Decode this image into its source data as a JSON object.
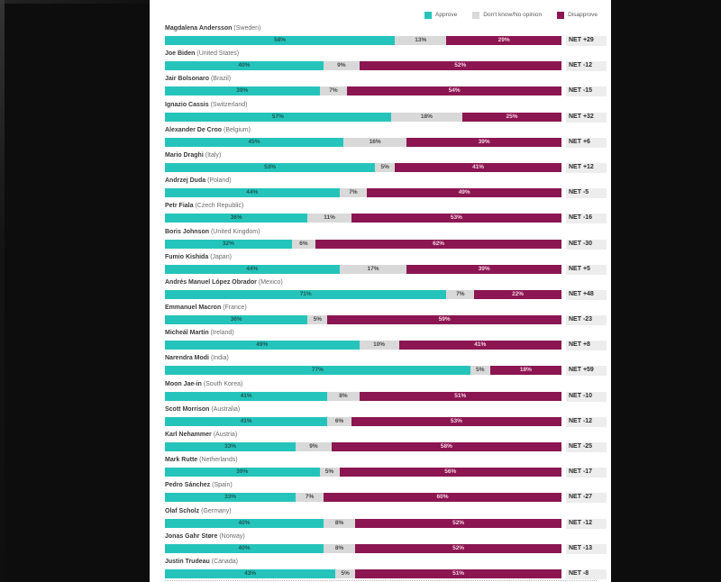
{
  "chart_data": {
    "type": "bar",
    "orientation": "horizontal",
    "stacked": true,
    "title": "",
    "xlim": [
      0,
      100
    ],
    "grid": false,
    "legend_position": "top-right",
    "legend": {
      "approve": "Approve",
      "dk": "Don't know/No opinion",
      "disapprove": "Disapprove"
    },
    "colors": {
      "approve": "#25c4bb",
      "dk": "#d9d9d9",
      "disapprove": "#8b1651"
    },
    "net_prefix": "NET",
    "rows": [
      {
        "name": "Magdalena Andersson",
        "country": "Sweden",
        "approve": 58,
        "dk": 13,
        "disapprove": 29,
        "net": "+29"
      },
      {
        "name": "Joe Biden",
        "country": "United States",
        "approve": 40,
        "dk": 9,
        "disapprove": 52,
        "net": "-12"
      },
      {
        "name": "Jair Bolsonaro",
        "country": "Brazil",
        "approve": 39,
        "dk": 7,
        "disapprove": 54,
        "net": "-15"
      },
      {
        "name": "Ignazio Cassis",
        "country": "Switzerland",
        "approve": 57,
        "dk": 18,
        "disapprove": 25,
        "net": "+32"
      },
      {
        "name": "Alexander De Croo",
        "country": "Belgium",
        "approve": 45,
        "dk": 16,
        "disapprove": 39,
        "net": "+6"
      },
      {
        "name": "Mario Draghi",
        "country": "Italy",
        "approve": 53,
        "dk": 5,
        "disapprove": 41,
        "net": "+12"
      },
      {
        "name": "Andrzej Duda",
        "country": "Poland",
        "approve": 44,
        "dk": 7,
        "disapprove": 49,
        "net": "-5"
      },
      {
        "name": "Petr Fiala",
        "country": "Czech Republic",
        "approve": 36,
        "dk": 11,
        "disapprove": 53,
        "net": "-16"
      },
      {
        "name": "Boris Johnson",
        "country": "United Kingdom",
        "approve": 32,
        "dk": 6,
        "disapprove": 62,
        "net": "-30"
      },
      {
        "name": "Fumio Kishida",
        "country": "Japan",
        "approve": 44,
        "dk": 17,
        "disapprove": 39,
        "net": "+5"
      },
      {
        "name": "Andrés Manuel López Obrador",
        "country": "Mexico",
        "approve": 71,
        "dk": 7,
        "disapprove": 22,
        "net": "+48"
      },
      {
        "name": "Emmanuel Macron",
        "country": "France",
        "approve": 36,
        "dk": 5,
        "disapprove": 59,
        "net": "-23"
      },
      {
        "name": "Micheál Martin",
        "country": "Ireland",
        "approve": 49,
        "dk": 10,
        "disapprove": 41,
        "net": "+8"
      },
      {
        "name": "Narendra Modi",
        "country": "India",
        "approve": 77,
        "dk": 5,
        "disapprove": 18,
        "net": "+59"
      },
      {
        "name": "Moon Jae-in",
        "country": "South Korea",
        "approve": 41,
        "dk": 8,
        "disapprove": 51,
        "net": "-10"
      },
      {
        "name": "Scott Morrison",
        "country": "Australia",
        "approve": 41,
        "dk": 6,
        "disapprove": 53,
        "net": "-12"
      },
      {
        "name": "Karl Nehammer",
        "country": "Austria",
        "approve": 33,
        "dk": 9,
        "disapprove": 58,
        "net": "-25"
      },
      {
        "name": "Mark Rutte",
        "country": "Netherlands",
        "approve": 39,
        "dk": 5,
        "disapprove": 56,
        "net": "-17"
      },
      {
        "name": "Pedro Sánchez",
        "country": "Spain",
        "approve": 33,
        "dk": 7,
        "disapprove": 60,
        "net": "-27"
      },
      {
        "name": "Olaf Scholz",
        "country": "Germany",
        "approve": 40,
        "dk": 8,
        "disapprove": 52,
        "net": "-12"
      },
      {
        "name": "Jonas Gahr Støre",
        "country": "Norway",
        "approve": 40,
        "dk": 8,
        "disapprove": 52,
        "net": "-13"
      },
      {
        "name": "Justin Trudeau",
        "country": "Canada",
        "approve": 43,
        "dk": 5,
        "disapprove": 51,
        "net": "-8"
      }
    ]
  }
}
